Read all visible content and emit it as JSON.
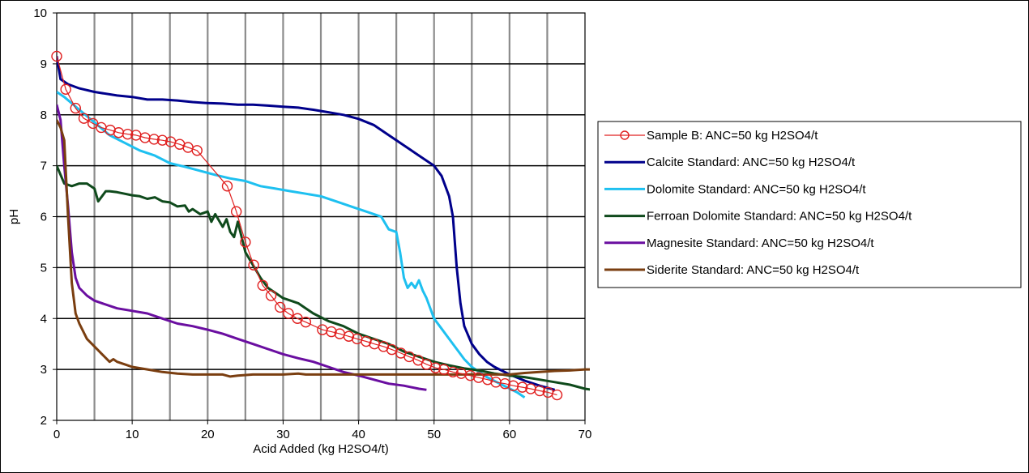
{
  "chart_data": {
    "type": "line",
    "xlabel": "Acid Added (kg H2SO4/t)",
    "ylabel": "pH",
    "xlim": [
      0,
      70
    ],
    "ylim": [
      2,
      10
    ],
    "xticks": [
      0,
      10,
      20,
      30,
      40,
      50,
      60,
      70
    ],
    "yticks": [
      2,
      3,
      4,
      5,
      6,
      7,
      8,
      9,
      10
    ],
    "minor_x_gridlines_every": 5,
    "major_y_gridlines_every": 1,
    "grid": true,
    "legend_position": "right",
    "series": [
      {
        "name": "Sample B: ANC=50 kg H2SO4/t",
        "color": "#e02020",
        "marker": "open-circle",
        "x": [
          0,
          1.2,
          2.5,
          3.6,
          4.8,
          5.9,
          7.1,
          8.2,
          9.4,
          10.5,
          11.7,
          12.9,
          14.0,
          15.1,
          16.3,
          17.4,
          18.6,
          22.6,
          23.8,
          25.0,
          26.1,
          27.3,
          28.4,
          29.6,
          30.7,
          31.9,
          33.0,
          35.2,
          36.4,
          37.5,
          38.7,
          39.8,
          41.0,
          42.1,
          43.3,
          44.4,
          45.6,
          46.7,
          47.9,
          49.0,
          50.2,
          51.3,
          52.5,
          53.6,
          54.8,
          55.9,
          57.1,
          58.2,
          59.4,
          60.5,
          61.7,
          62.8,
          64.0,
          65.1,
          66.3
        ],
        "y": [
          9.15,
          8.5,
          8.13,
          7.93,
          7.83,
          7.75,
          7.7,
          7.65,
          7.62,
          7.6,
          7.55,
          7.52,
          7.5,
          7.47,
          7.42,
          7.36,
          7.3,
          6.6,
          6.1,
          5.5,
          5.05,
          4.65,
          4.45,
          4.22,
          4.1,
          4.0,
          3.93,
          3.78,
          3.74,
          3.7,
          3.65,
          3.6,
          3.55,
          3.5,
          3.45,
          3.39,
          3.32,
          3.25,
          3.18,
          3.1,
          3.03,
          3.0,
          2.95,
          2.92,
          2.88,
          2.84,
          2.8,
          2.75,
          2.72,
          2.68,
          2.65,
          2.62,
          2.58,
          2.55,
          2.5
        ]
      },
      {
        "name": "Calcite Standard: ANC=50 kg H2SO4/t",
        "color": "#00008b",
        "x": [
          0,
          0.5,
          1.5,
          3,
          5,
          8,
          10,
          12,
          14,
          16,
          18,
          20,
          22,
          24,
          26,
          28,
          30,
          32,
          34,
          36,
          38,
          40,
          42,
          44,
          46,
          48,
          50,
          51,
          52,
          52.5,
          53,
          53.5,
          54,
          55,
          56,
          57,
          58,
          60,
          62,
          64,
          66
        ],
        "y": [
          9.15,
          8.7,
          8.6,
          8.52,
          8.45,
          8.38,
          8.35,
          8.3,
          8.3,
          8.28,
          8.25,
          8.23,
          8.22,
          8.2,
          8.2,
          8.18,
          8.16,
          8.14,
          8.1,
          8.05,
          8.0,
          7.92,
          7.8,
          7.6,
          7.4,
          7.2,
          7.0,
          6.8,
          6.4,
          6.0,
          5.0,
          4.3,
          3.85,
          3.5,
          3.3,
          3.15,
          3.05,
          2.9,
          2.78,
          2.68,
          2.6
        ]
      },
      {
        "name": "Dolomite Standard: ANC=50 kg H2SO4/t",
        "color": "#1ec0f0",
        "x": [
          0,
          1,
          3,
          5,
          7,
          9,
          11,
          13,
          15,
          17,
          19,
          21,
          23,
          25,
          27,
          29,
          31,
          33,
          35,
          37,
          39,
          41,
          43,
          44,
          45,
          45.5,
          46,
          46.5,
          47,
          47.5,
          48,
          48.5,
          49,
          50,
          51,
          52,
          53,
          54,
          55,
          57,
          59,
          61,
          62
        ],
        "y": [
          8.45,
          8.35,
          8.1,
          7.85,
          7.6,
          7.45,
          7.3,
          7.2,
          7.05,
          6.98,
          6.9,
          6.82,
          6.75,
          6.7,
          6.6,
          6.55,
          6.5,
          6.45,
          6.4,
          6.3,
          6.2,
          6.1,
          6.0,
          5.75,
          5.7,
          5.3,
          4.8,
          4.6,
          4.7,
          4.6,
          4.75,
          4.55,
          4.4,
          4.0,
          3.8,
          3.6,
          3.4,
          3.2,
          3.05,
          2.85,
          2.7,
          2.55,
          2.45
        ]
      },
      {
        "name": "Ferroan Dolomite Standard: ANC=50 kg H2SO4/t",
        "color": "#0f4a1c",
        "x": [
          0,
          1,
          2,
          3,
          4,
          5,
          5.5,
          6,
          6.5,
          7,
          8,
          9,
          10,
          11,
          12,
          13,
          14,
          15,
          16,
          17,
          17.5,
          18,
          19,
          20,
          20.5,
          21,
          22,
          22.5,
          23,
          23.5,
          24,
          25,
          26,
          27,
          28,
          29,
          30,
          31,
          32,
          33,
          34,
          36,
          38,
          40,
          42,
          44,
          46,
          48,
          50,
          52,
          54,
          56,
          58,
          60,
          62,
          64,
          66,
          68,
          70,
          71
        ],
        "y": [
          7.0,
          6.65,
          6.6,
          6.65,
          6.65,
          6.55,
          6.3,
          6.4,
          6.5,
          6.5,
          6.48,
          6.45,
          6.42,
          6.4,
          6.35,
          6.38,
          6.3,
          6.28,
          6.2,
          6.22,
          6.1,
          6.15,
          6.05,
          6.1,
          5.9,
          6.05,
          5.8,
          5.95,
          5.7,
          5.6,
          5.9,
          5.3,
          5.05,
          4.8,
          4.6,
          4.5,
          4.4,
          4.35,
          4.3,
          4.2,
          4.1,
          3.95,
          3.85,
          3.7,
          3.6,
          3.5,
          3.35,
          3.25,
          3.15,
          3.08,
          3.02,
          2.98,
          2.92,
          2.88,
          2.85,
          2.8,
          2.75,
          2.7,
          2.62,
          2.6
        ]
      },
      {
        "name": "Magnesite Standard: ANC=50 kg H2SO4/t",
        "color": "#6a0ea0",
        "x": [
          0,
          0.5,
          1,
          1.5,
          2,
          2.5,
          3,
          4,
          5,
          6,
          8,
          10,
          12,
          14,
          16,
          18,
          20,
          22,
          24,
          26,
          28,
          30,
          32,
          34,
          36,
          38,
          40,
          42,
          44,
          46,
          48,
          49
        ],
        "y": [
          8.2,
          7.9,
          7.0,
          6.2,
          5.3,
          4.8,
          4.6,
          4.45,
          4.35,
          4.3,
          4.2,
          4.15,
          4.1,
          4.0,
          3.9,
          3.85,
          3.78,
          3.7,
          3.6,
          3.5,
          3.4,
          3.3,
          3.22,
          3.15,
          3.05,
          2.95,
          2.88,
          2.8,
          2.72,
          2.68,
          2.62,
          2.6
        ]
      },
      {
        "name": "Siderite Standard: ANC=50 kg H2SO4/t",
        "color": "#7a3e10",
        "x": [
          0,
          0.5,
          1,
          1.5,
          2,
          2.5,
          3,
          4,
          5,
          6,
          7,
          7.5,
          8,
          9,
          10,
          12,
          14,
          16,
          18,
          20,
          22,
          23,
          24,
          26,
          28,
          30,
          32,
          33,
          34,
          36,
          38,
          40,
          44,
          48,
          52,
          56,
          60,
          62,
          64,
          66,
          68,
          70,
          71
        ],
        "y": [
          7.9,
          7.75,
          7.5,
          6.0,
          4.7,
          4.1,
          3.9,
          3.6,
          3.45,
          3.3,
          3.15,
          3.2,
          3.15,
          3.1,
          3.05,
          3.0,
          2.95,
          2.92,
          2.9,
          2.9,
          2.9,
          2.86,
          2.88,
          2.9,
          2.9,
          2.9,
          2.92,
          2.9,
          2.9,
          2.9,
          2.9,
          2.9,
          2.9,
          2.9,
          2.9,
          2.9,
          2.9,
          2.93,
          2.95,
          2.97,
          2.98,
          3.0,
          3.0
        ]
      }
    ]
  }
}
